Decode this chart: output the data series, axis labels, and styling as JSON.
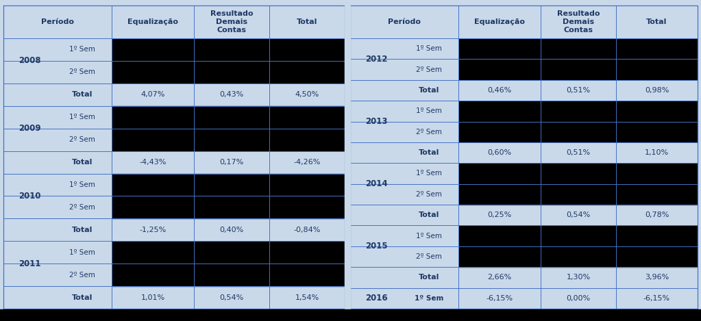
{
  "bg_color": "#c9d9ea",
  "cell_text_color": "#1f3864",
  "black_cell_color": "#000000",
  "divider_color": "#4472c4",
  "left_table": {
    "headers": [
      "Período",
      "Equalização",
      "Resultado\nDemais\nContas",
      "Total"
    ],
    "years": [
      "2008",
      "2009",
      "2010",
      "2011"
    ],
    "sem_labels": [
      "1º Sem",
      "2º Sem"
    ],
    "totals": [
      [
        "4,07%",
        "0,43%",
        "4,50%"
      ],
      [
        "-4,43%",
        "0,17%",
        "-4,26%"
      ],
      [
        "-1,25%",
        "0,40%",
        "-0,84%"
      ],
      [
        "1,01%",
        "0,54%",
        "1,54%"
      ]
    ]
  },
  "right_table": {
    "headers": [
      "Período",
      "Equalização",
      "Resultado\nDemais\nContas",
      "Total"
    ],
    "years": [
      "2012",
      "2013",
      "2014",
      "2015",
      "2016"
    ],
    "sem_labels": [
      "1º Sem",
      "2º Sem"
    ],
    "totals": [
      [
        "0,46%",
        "0,51%",
        "0,98%"
      ],
      [
        "0,60%",
        "0,51%",
        "1,10%"
      ],
      [
        "0,25%",
        "0,54%",
        "0,78%"
      ],
      [
        "2,66%",
        "1,30%",
        "3,96%"
      ],
      null
    ],
    "special_2016": [
      "-6,15%",
      "0,00%",
      "-6,15%"
    ]
  },
  "font_size_header": 8.0,
  "font_size_year": 8.5,
  "font_size_sem": 7.5,
  "font_size_total": 8.0,
  "font_size_data": 8.0
}
